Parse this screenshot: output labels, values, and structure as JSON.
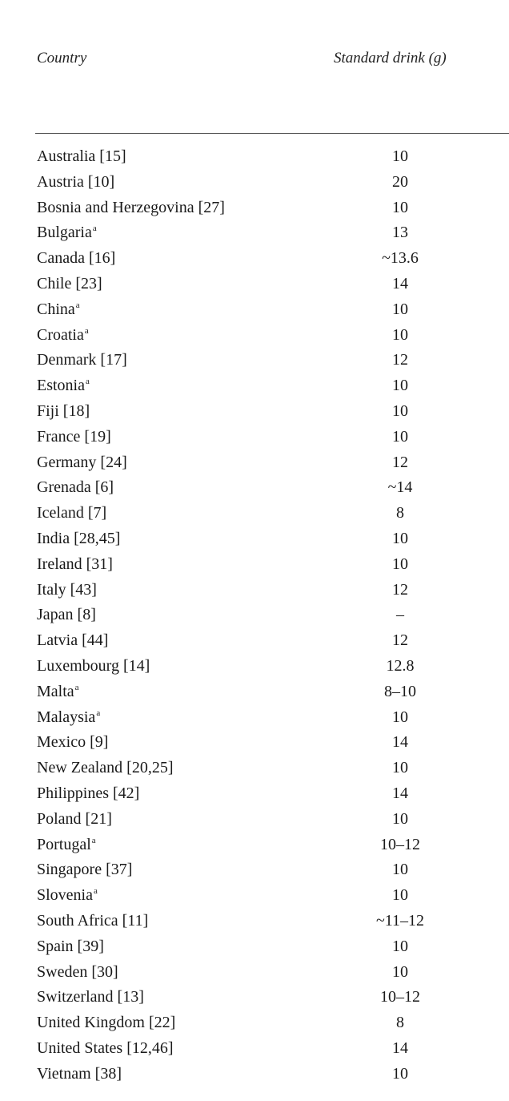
{
  "table": {
    "headers": {
      "country": "Country",
      "standard_drink": "Standard drink (g)"
    },
    "rows": [
      {
        "country": "Australia [15]",
        "note": "",
        "value": "10"
      },
      {
        "country": "Austria [10]",
        "note": "",
        "value": "20"
      },
      {
        "country": "Bosnia and Herzegovina [27]",
        "note": "",
        "value": "10"
      },
      {
        "country": "Bulgaria",
        "note": "a",
        "value": "13"
      },
      {
        "country": "Canada [16]",
        "note": "",
        "value": "~13.6"
      },
      {
        "country": "Chile [23]",
        "note": "",
        "value": "14"
      },
      {
        "country": "China",
        "note": "a",
        "value": "10"
      },
      {
        "country": "Croatia",
        "note": "a",
        "value": "10"
      },
      {
        "country": "Denmark [17]",
        "note": "",
        "value": "12"
      },
      {
        "country": "Estonia",
        "note": "a",
        "value": "10"
      },
      {
        "country": "Fiji [18]",
        "note": "",
        "value": "10"
      },
      {
        "country": "France [19]",
        "note": "",
        "value": "10"
      },
      {
        "country": "Germany [24]",
        "note": "",
        "value": "12"
      },
      {
        "country": "Grenada [6]",
        "note": "",
        "value": "~14"
      },
      {
        "country": "Iceland [7]",
        "note": "",
        "value": "8"
      },
      {
        "country": "India [28,45]",
        "note": "",
        "value": "10"
      },
      {
        "country": "Ireland [31]",
        "note": "",
        "value": "10"
      },
      {
        "country": "Italy [43]",
        "note": "",
        "value": "12"
      },
      {
        "country": "Japan [8]",
        "note": "",
        "value": "–"
      },
      {
        "country": "Latvia [44]",
        "note": "",
        "value": "12"
      },
      {
        "country": "Luxembourg [14]",
        "note": "",
        "value": "12.8"
      },
      {
        "country": "Malta",
        "note": "a",
        "value": "8–10"
      },
      {
        "country": "Malaysia",
        "note": "a",
        "value": "10"
      },
      {
        "country": "Mexico [9]",
        "note": "",
        "value": "14"
      },
      {
        "country": "New Zealand [20,25]",
        "note": "",
        "value": "10"
      },
      {
        "country": "Philippines [42]",
        "note": "",
        "value": "14"
      },
      {
        "country": "Poland [21]",
        "note": "",
        "value": "10"
      },
      {
        "country": "Portugal",
        "note": "a",
        "value": "10–12"
      },
      {
        "country": "Singapore [37]",
        "note": "",
        "value": "10"
      },
      {
        "country": "Slovenia",
        "note": "a",
        "value": "10"
      },
      {
        "country": "South Africa [11]",
        "note": "",
        "value": "~11–12"
      },
      {
        "country": "Spain [39]",
        "note": "",
        "value": "10"
      },
      {
        "country": "Sweden [30]",
        "note": "",
        "value": "10"
      },
      {
        "country": "Switzerland [13]",
        "note": "",
        "value": "10–12"
      },
      {
        "country": "United Kingdom [22]",
        "note": "",
        "value": "8"
      },
      {
        "country": "United States [12,46]",
        "note": "",
        "value": "14"
      },
      {
        "country": "Vietnam [38]",
        "note": "",
        "value": "10"
      }
    ]
  }
}
